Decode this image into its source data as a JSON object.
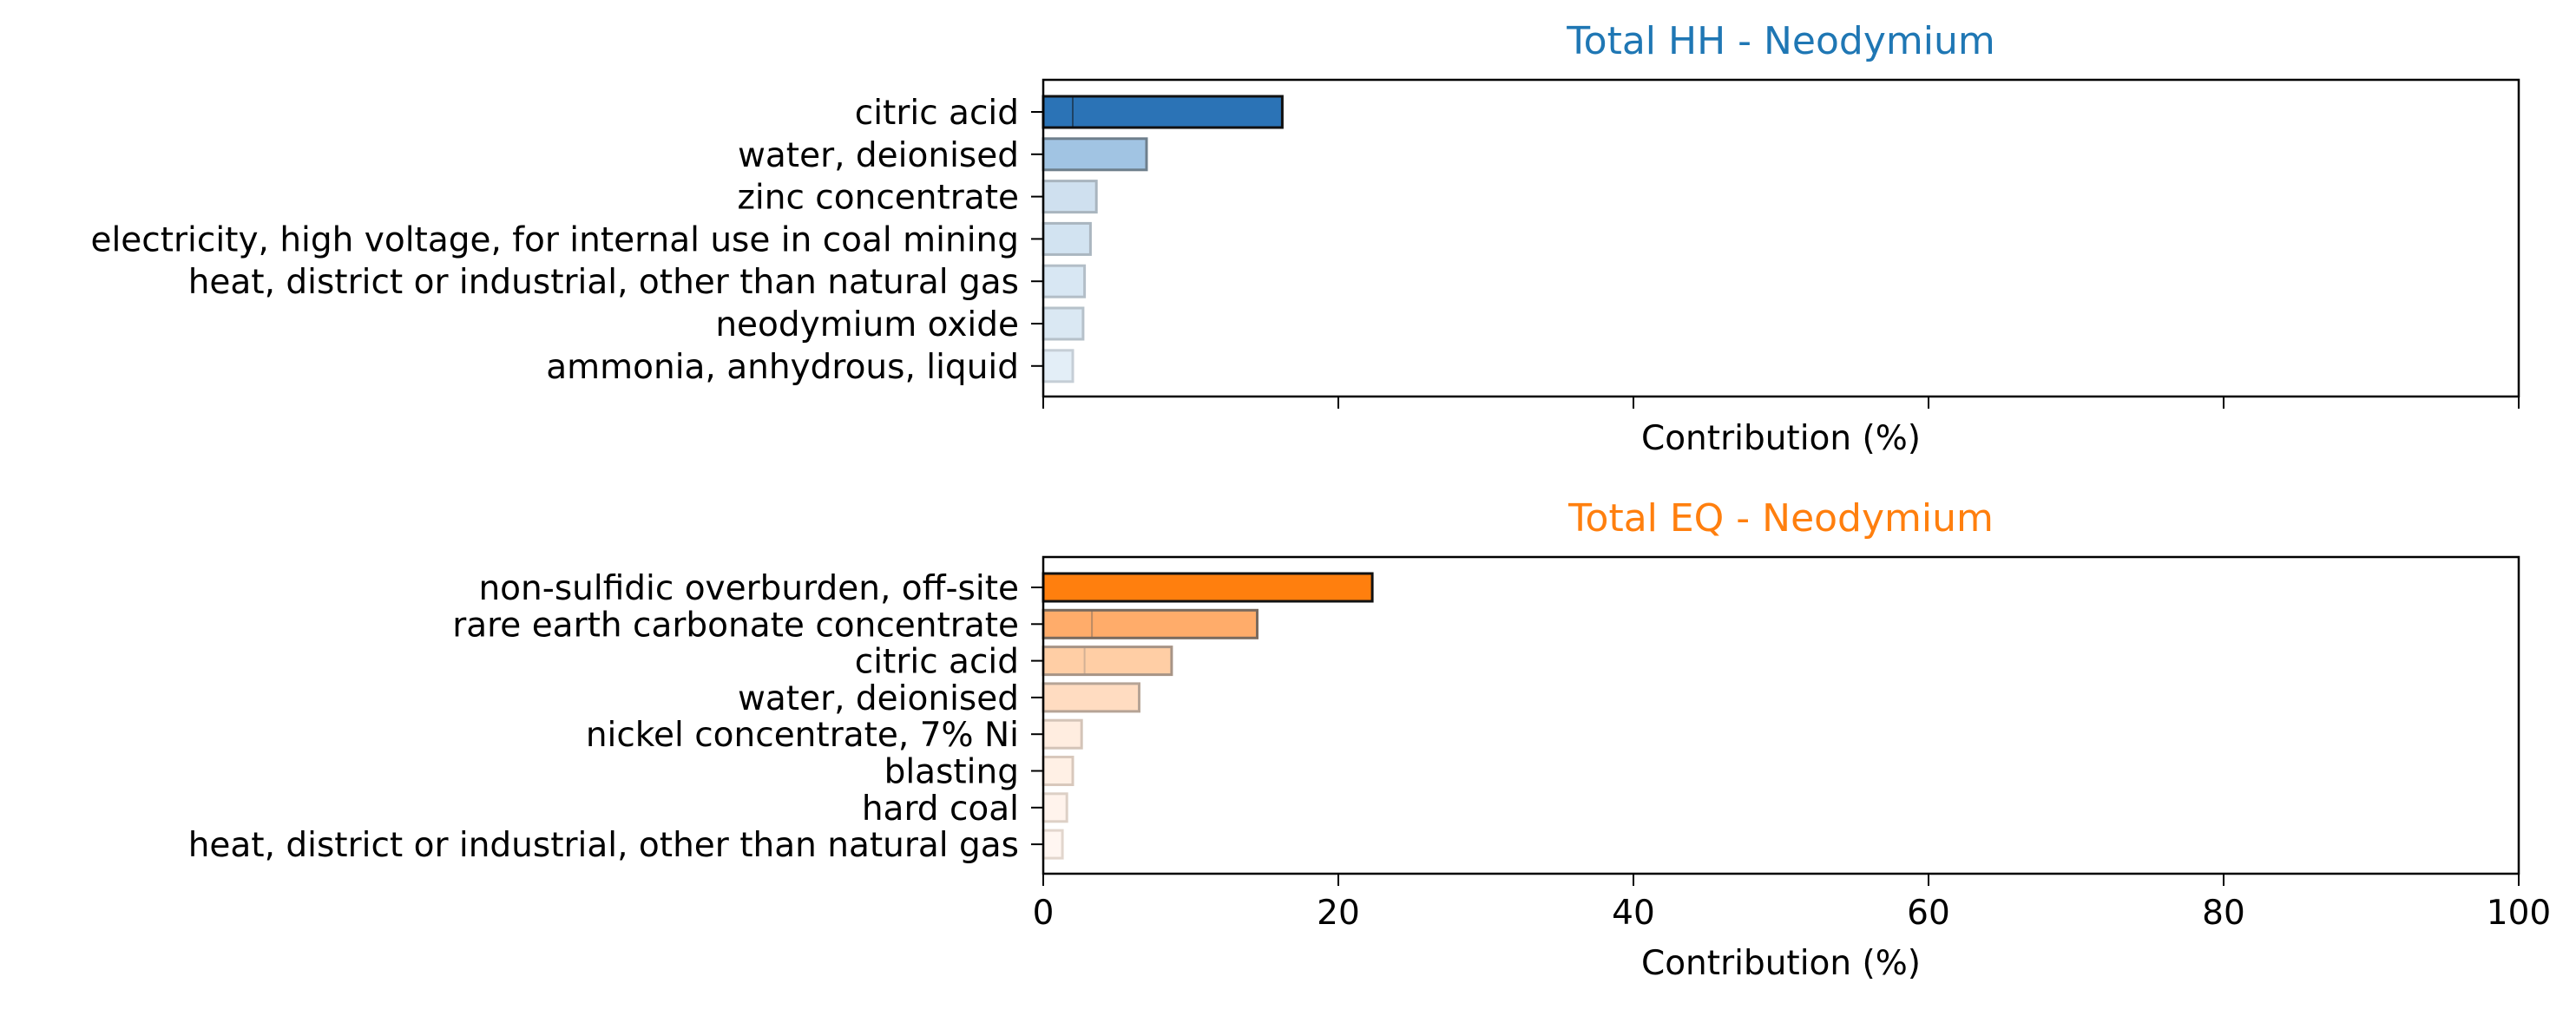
{
  "chart_data": [
    {
      "type": "bar",
      "orientation": "horizontal",
      "title": "Total HH - Neodymium",
      "title_color": "#1f77b4",
      "xlabel": "Contribution (%)",
      "xlim": [
        0,
        100
      ],
      "xticks": [
        0,
        20,
        40,
        60,
        80,
        100
      ],
      "show_tick_labels": false,
      "grid": false,
      "categories": [
        "citric acid",
        "water, deionised",
        "zinc concentrate",
        "electricity, high voltage, for internal use in coal mining",
        "heat, district or industrial, other than natural gas",
        "neodymium oxide",
        "ammonia, anhydrous, liquid"
      ],
      "values": [
        16.2,
        7.0,
        3.6,
        3.2,
        2.8,
        2.7,
        2.0
      ],
      "fill_colors": [
        "#2b73b6",
        "#a1c4e3",
        "#cfe0ef",
        "#d2e3f1",
        "#d8e7f3",
        "#dae8f3",
        "#e3eef7"
      ],
      "edge_colors": [
        "#111111",
        "#6e7f8c",
        "#a9b5bf",
        "#aab6c0",
        "#b3bec7",
        "#b6c1ca",
        "#c5ced6"
      ],
      "inner_marks": [
        2.0,
        null,
        null,
        null,
        null,
        null,
        null
      ]
    },
    {
      "type": "bar",
      "orientation": "horizontal",
      "title": "Total EQ - Neodymium",
      "title_color": "#ff7f0e",
      "xlabel": "Contribution (%)",
      "xlim": [
        0,
        100
      ],
      "xticks": [
        0,
        20,
        40,
        60,
        80,
        100
      ],
      "show_tick_labels": true,
      "grid": false,
      "categories": [
        "non-sulfidic overburden, off-site",
        "rare earth carbonate concentrate",
        "citric acid",
        "water, deionised",
        "nickel concentrate, 7% Ni",
        "blasting",
        "hard coal",
        "heat, district or industrial, other than natural gas"
      ],
      "values": [
        22.3,
        14.5,
        8.7,
        6.5,
        2.6,
        2.0,
        1.6,
        1.3
      ],
      "fill_colors": [
        "#ff7f0e",
        "#ffac6a",
        "#ffcea5",
        "#ffdcc1",
        "#ffede0",
        "#fff0e5",
        "#fff3ec",
        "#fff6f1"
      ],
      "edge_colors": [
        "#111111",
        "#7a6a5e",
        "#a79486",
        "#b6a496",
        "#d4c4b8",
        "#d8c8bc",
        "#ddd0c6",
        "#e2d6cd"
      ],
      "inner_marks": [
        null,
        3.3,
        2.8,
        null,
        null,
        null,
        null,
        null
      ]
    }
  ]
}
